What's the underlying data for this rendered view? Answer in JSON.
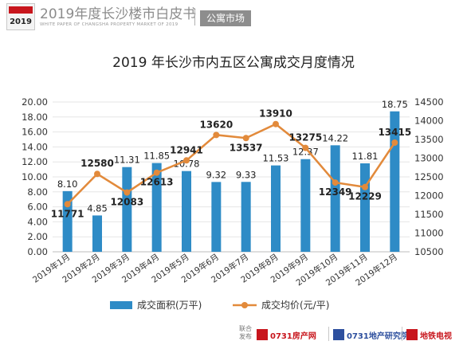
{
  "header": {
    "brand_year": "2019",
    "title": "2019年度长沙楼市白皮书",
    "subtitle": "WHITE PAPER OF CHANGSHA PROPERTY MARKET OF 2019",
    "section_tag": "公寓市场"
  },
  "chart_data": {
    "type": "bar+line",
    "title": "2019 年长沙市内五区公寓成交月度情况",
    "categories": [
      "2019年1月",
      "2019年2月",
      "2019年3月",
      "2019年4月",
      "2019年5月",
      "2019年6月",
      "2019年7月",
      "2019年8月",
      "2019年9月",
      "2019年10月",
      "2019年11月",
      "2019年12月"
    ],
    "series": [
      {
        "name": "成交面积(万平)",
        "type": "bar",
        "axis": "left",
        "color": "#2e8bc6",
        "values": [
          8.1,
          4.85,
          11.31,
          11.85,
          10.78,
          9.32,
          9.33,
          11.53,
          12.37,
          14.22,
          11.81,
          18.75
        ],
        "labels": [
          "8.10",
          "4.85",
          "11.31",
          "11.85",
          "10.78",
          "9.32",
          "9.33",
          "11.53",
          "12.37",
          "14.22",
          "11.81",
          "18.75"
        ]
      },
      {
        "name": "成交均价(元/平)",
        "type": "line",
        "axis": "right",
        "color": "#e28a3b",
        "values": [
          11771,
          12580,
          12083,
          12613,
          12941,
          13620,
          13537,
          13910,
          13275,
          12349,
          12229,
          13415
        ],
        "labels": [
          "11771",
          "12580",
          "12083",
          "12613",
          "12941",
          "13620",
          "13537",
          "13910",
          "13275",
          "12349",
          "12229",
          "13415"
        ]
      }
    ],
    "y_left": {
      "min": 0,
      "max": 20,
      "step": 2,
      "ticks": [
        "0.00",
        "2.00",
        "4.00",
        "6.00",
        "8.00",
        "10.00",
        "12.00",
        "14.00",
        "16.00",
        "18.00",
        "20.00"
      ]
    },
    "y_right": {
      "min": 10500,
      "max": 14500,
      "step": 500,
      "ticks": [
        "10500",
        "11000",
        "11500",
        "12000",
        "12500",
        "13000",
        "13500",
        "14000",
        "14500"
      ]
    },
    "legend_position": "bottom"
  },
  "footer": {
    "label": "联合发布",
    "logo1": "0731房产网",
    "logo2": "0731地产研究院",
    "logo3": "地铁电视"
  }
}
